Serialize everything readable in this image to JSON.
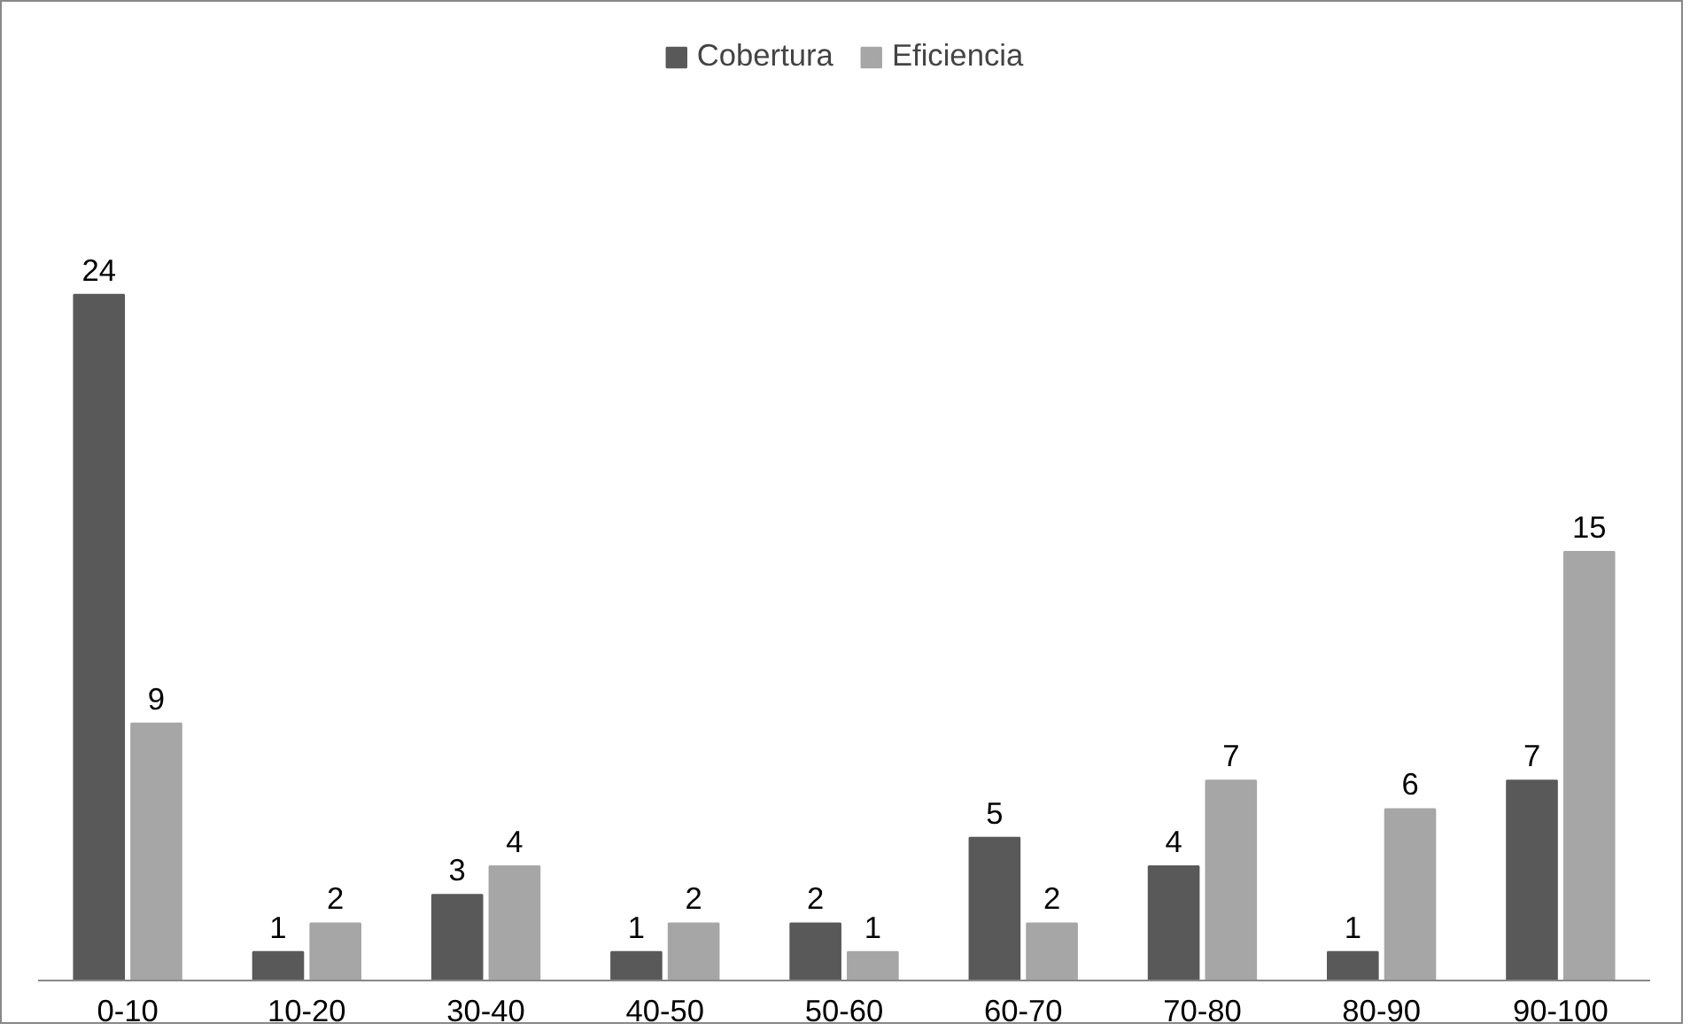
{
  "chart_data": {
    "type": "bar",
    "categories": [
      "0-10",
      "10-20",
      "30-40",
      "40-50",
      "50-60",
      "60-70",
      "70-80",
      "80-90",
      "90-100"
    ],
    "series": [
      {
        "name": "Cobertura",
        "color": "#595959",
        "values": [
          24,
          1,
          3,
          1,
          2,
          5,
          4,
          1,
          7
        ]
      },
      {
        "name": "Eficiencia",
        "color": "#a6a6a6",
        "values": [
          9,
          2,
          4,
          2,
          1,
          2,
          7,
          6,
          15
        ]
      }
    ],
    "data_labels": true,
    "legend": "top",
    "grid": false
  }
}
